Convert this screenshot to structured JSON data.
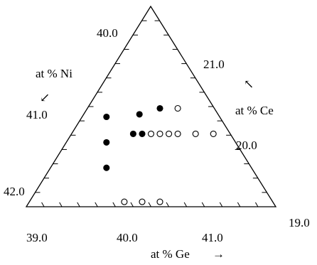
{
  "chart_data": {
    "type": "scatter",
    "title": "",
    "axes": {
      "ge": {
        "label": "at % Ge",
        "arrow": "→",
        "range": [
          38.8,
          41.6
        ],
        "ticks": [
          39.0,
          40.0,
          41.0
        ],
        "tick_labels": [
          "39.0",
          "40.0",
          "41.0"
        ]
      },
      "ni": {
        "label": "at % Ni",
        "arrow": "↙",
        "range": [
          39.7,
          42.2
        ],
        "ticks": [
          40.0,
          41.0,
          42.0
        ],
        "tick_labels": [
          "40.0",
          "41.0",
          "42.0"
        ]
      },
      "ce": {
        "label": "at % Ce",
        "arrow": "↖",
        "range": [
          19.0,
          21.5
        ],
        "ticks": [
          19.0,
          20.0,
          21.0
        ],
        "tick_labels": [
          "19.0",
          "20.0",
          "21.0"
        ]
      }
    },
    "series": [
      {
        "marker": "filled",
        "points": [
          {
            "ge": 39.7,
            "ni": 41.0
          },
          {
            "ge": 39.7,
            "ni": 41.3
          },
          {
            "ge": 39.7,
            "ni": 41.6
          },
          {
            "ge": 40.0,
            "ni": 41.2
          },
          {
            "ge": 40.1,
            "ni": 41.2
          },
          {
            "ge": 40.07,
            "ni": 40.97
          },
          {
            "ge": 40.3,
            "ni": 40.9
          }
        ]
      },
      {
        "marker": "open",
        "points": [
          {
            "ge": 40.5,
            "ni": 40.9
          },
          {
            "ge": 40.2,
            "ni": 41.2
          },
          {
            "ge": 40.3,
            "ni": 41.2
          },
          {
            "ge": 40.4,
            "ni": 41.2
          },
          {
            "ge": 40.5,
            "ni": 41.2
          },
          {
            "ge": 40.7,
            "ni": 41.2
          },
          {
            "ge": 40.9,
            "ni": 41.2
          },
          {
            "ge": 39.9,
            "ni": 42.0
          },
          {
            "ge": 40.1,
            "ni": 42.0
          },
          {
            "ge": 40.3,
            "ni": 42.0
          }
        ]
      }
    ],
    "grid": false,
    "legend": "none"
  }
}
